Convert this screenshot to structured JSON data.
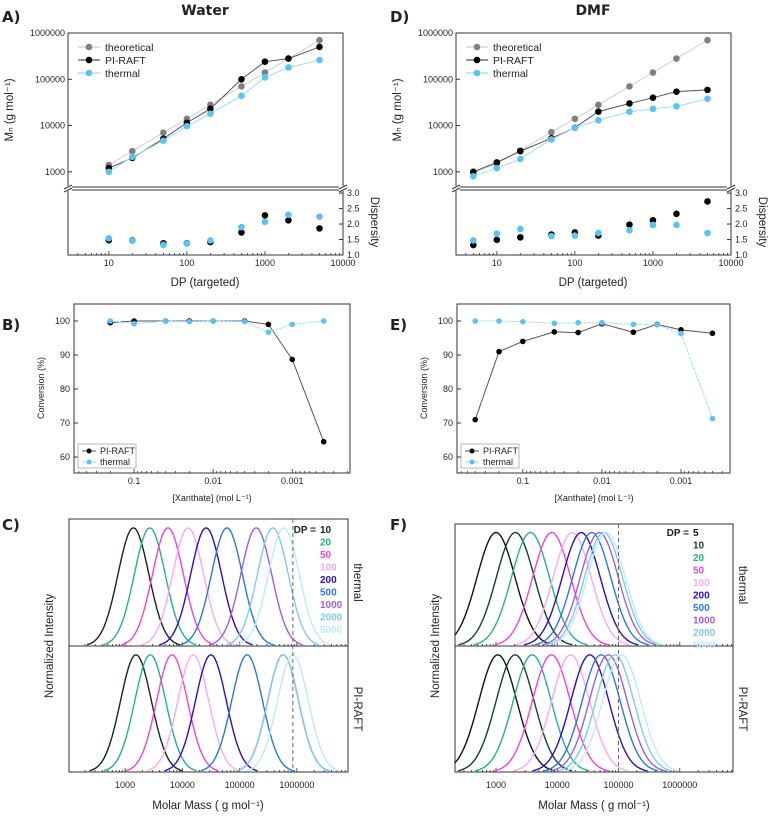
{
  "chart_data": [
    {
      "panel": "A)",
      "title": "Water",
      "type": "line",
      "xscale": "log",
      "yscale": "log",
      "xlabel": "DP (targeted)",
      "ylabel": "Mₙ (g mol⁻¹)",
      "y2label": "Dispersity",
      "xlim": [
        3,
        10000
      ],
      "ylim": [
        470,
        1000000
      ],
      "y2lim": [
        1.0,
        3.1
      ],
      "xticks": [
        "10",
        "100",
        "1000",
        "10000"
      ],
      "yticks": [
        "1000",
        "10000",
        "100000",
        "1000000"
      ],
      "y2ticks": [
        "1.0",
        "1.5",
        "2.0",
        "2.5",
        "3.0"
      ],
      "legend": "top-left",
      "x": [
        10,
        20,
        50,
        100,
        200,
        500,
        1000,
        2000,
        5000
      ],
      "series": [
        {
          "name": "theoretical",
          "color": "#808080",
          "line": "#cfcfcf",
          "values": [
            1400,
            2800,
            7000,
            14000,
            28000,
            70000,
            140000,
            280000,
            700000
          ]
        },
        {
          "name": "PI-RAFT",
          "color": "#000000",
          "line": "#555555",
          "values": [
            1200,
            2000,
            5200,
            11500,
            23000,
            100000,
            240000,
            280000,
            500000
          ]
        },
        {
          "name": "thermal",
          "color": "#5bc2f2",
          "line": "#9bdcf7",
          "values": [
            1000,
            2100,
            4700,
            9700,
            18000,
            44000,
            110000,
            180000,
            260000
          ]
        }
      ],
      "dispersity": [
        {
          "name": "PI-RAFT",
          "color": "#000000",
          "values": [
            1.48,
            1.47,
            1.38,
            1.38,
            1.42,
            1.73,
            2.28,
            2.12,
            1.86
          ]
        },
        {
          "name": "thermal",
          "color": "#5bc2f2",
          "values": [
            1.54,
            1.46,
            1.33,
            1.37,
            1.47,
            1.9,
            2.07,
            2.3,
            2.24
          ]
        }
      ]
    },
    {
      "panel": "D)",
      "title": "DMF",
      "type": "line",
      "xscale": "log",
      "yscale": "log",
      "xlabel": "DP (targeted)",
      "ylabel": "Mₙ (g mol⁻¹)",
      "y2label": "Dispersity",
      "xlim": [
        3,
        10000
      ],
      "ylim": [
        470,
        1000000
      ],
      "y2lim": [
        1.0,
        3.1
      ],
      "xticks": [
        "10",
        "100",
        "1000",
        "10000"
      ],
      "yticks": [
        "1000",
        "10000",
        "100000",
        "1000000"
      ],
      "y2ticks": [
        "1.0",
        "1.5",
        "2.0",
        "2.5",
        "3.0"
      ],
      "legend": "top-left",
      "x": [
        5,
        10,
        20,
        50,
        100,
        200,
        500,
        1000,
        2000,
        5000
      ],
      "series": [
        {
          "name": "theoretical",
          "color": "#808080",
          "line": "#cfcfcf",
          "values": [
            950,
            1500,
            2900,
            7200,
            14000,
            28000,
            70000,
            140000,
            280000,
            700000
          ]
        },
        {
          "name": "PI-RAFT",
          "color": "#000000",
          "line": "#555555",
          "values": [
            1000,
            1600,
            2800,
            5300,
            9000,
            20000,
            30000,
            40000,
            54000,
            59000
          ]
        },
        {
          "name": "thermal",
          "color": "#5bc2f2",
          "line": "#9bdcf7",
          "values": [
            800,
            1200,
            1900,
            5000,
            9000,
            13000,
            20000,
            23000,
            26000,
            38000
          ]
        }
      ],
      "dispersity": [
        {
          "name": "PI-RAFT",
          "color": "#000000",
          "values": [
            1.32,
            1.49,
            1.57,
            1.66,
            1.73,
            1.63,
            1.98,
            2.12,
            2.33,
            2.73
          ]
        },
        {
          "name": "thermal",
          "color": "#5bc2f2",
          "values": [
            1.47,
            1.69,
            1.84,
            1.61,
            1.63,
            1.71,
            1.8,
            1.97,
            1.97,
            1.71
          ]
        }
      ]
    },
    {
      "panel": "B)",
      "type": "line",
      "xscale": "log (reversed)",
      "xlabel": "[Xanthate] (mol L⁻¹)",
      "ylabel": "Conversion (%)",
      "xlim": [
        0.575,
        0.000186
      ],
      "ylim": [
        55.3,
        105
      ],
      "xticks": [
        "0.1",
        "0.01",
        "0.001"
      ],
      "yticks": [
        "60",
        "70",
        "80",
        "90",
        "100"
      ],
      "legend": "bottom-left",
      "x": [
        0.2,
        0.1,
        0.04,
        0.02,
        0.01,
        0.004,
        0.002,
        0.001,
        0.0004
      ],
      "series": [
        {
          "name": "PI-RAFT",
          "color": "#000000",
          "line": "#555555",
          "values": [
            99.5,
            100,
            100,
            100,
            100,
            100,
            99,
            88.7,
            64.5
          ]
        },
        {
          "name": "thermal",
          "color": "#5bc2f2",
          "line": "#9bdcf7",
          "values": [
            100,
            99.2,
            100,
            99.8,
            100,
            99.8,
            96.7,
            99,
            100
          ]
        }
      ]
    },
    {
      "panel": "E)",
      "type": "line",
      "xscale": "log (reversed)",
      "xlabel": "[Xanthate] (mol L⁻¹)",
      "ylabel": "Conversion (%)",
      "xlim": [
        0.68,
        0.00024
      ],
      "ylim": [
        55.3,
        105
      ],
      "xticks": [
        "0.1",
        "0.01",
        "0.001"
      ],
      "yticks": [
        "60",
        "70",
        "80",
        "90",
        "100"
      ],
      "legend": "bottom-left",
      "x": [
        0.4,
        0.2,
        0.1,
        0.04,
        0.02,
        0.01,
        0.004,
        0.002,
        0.001,
        0.0004
      ],
      "series": [
        {
          "name": "PI-RAFT",
          "color": "#000000",
          "line": "#555555",
          "values": [
            71,
            91,
            94,
            96.8,
            96.6,
            99.2,
            96.7,
            99,
            97.4,
            96.4
          ]
        },
        {
          "name": "thermal",
          "color": "#5bc2f2",
          "line": "#9bdcf7",
          "values": [
            100,
            100,
            99.8,
            99.3,
            99.5,
            99.5,
            99,
            98.9,
            96.3,
            71.3
          ]
        }
      ]
    },
    {
      "panel": "C)",
      "type": "line",
      "xscale": "log",
      "xlabel": "Molar Mass ( g mol⁻¹)",
      "ylabel": "Normalized Intensity",
      "xlim": [
        105,
        7800000
      ],
      "xticks": [
        "1000",
        "10000",
        "100000",
        "1000000"
      ],
      "dashed_line_x": 850000,
      "dp_label": "DP =",
      "dp": [
        "10",
        "20",
        "50",
        "100",
        "200",
        "500",
        "1000",
        "2000",
        "5000"
      ],
      "colors": [
        "#13261f",
        "#22b48c",
        "#ff3fd6",
        "#ffa8ee",
        "#2a0fc4",
        "#2b77e0",
        "#9b5fe2",
        "#7fcaf4",
        "#bfeafb"
      ],
      "panels": [
        {
          "label": "thermal",
          "peak_molar_mass": [
            1400,
            2700,
            5600,
            12600,
            26000,
            60000,
            195000,
            380000,
            590000
          ]
        },
        {
          "label": "PI-RAFT",
          "peak_molar_mass": [
            1550,
            2750,
            6600,
            15500,
            31500,
            135000,
            575000,
            575000,
            850000
          ]
        }
      ]
    },
    {
      "panel": "F)",
      "type": "line",
      "xscale": "log",
      "xlabel": "Molar Mass ( g mol⁻¹)",
      "ylabel": "Normalized Intensity",
      "xlim": [
        214,
        7400000
      ],
      "xticks": [
        "1000",
        "10000",
        "100000",
        "1000000"
      ],
      "dashed_line_x": 100000,
      "dp_label": "DP =",
      "dp": [
        "5",
        "10",
        "20",
        "50",
        "100",
        "200",
        "500",
        "1000",
        "2000",
        "5000"
      ],
      "colors": [
        "#111111",
        "#163c36",
        "#22b48c",
        "#ff3fd6",
        "#ffa8ee",
        "#2a0fc4",
        "#2b77e0",
        "#9b5fe2",
        "#7fcaf4",
        "#bfeafb"
      ],
      "panels": [
        {
          "label": "thermal",
          "peak_molar_mass": [
            1000,
            2070,
            3650,
            8100,
            17500,
            24600,
            36500,
            48500,
            57000,
            63000
          ]
        },
        {
          "label": "PI-RAFT",
          "peak_molar_mass": [
            1070,
            2050,
            3900,
            8000,
            16500,
            34000,
            52000,
            68000,
            87000,
            112000
          ]
        }
      ]
    }
  ]
}
